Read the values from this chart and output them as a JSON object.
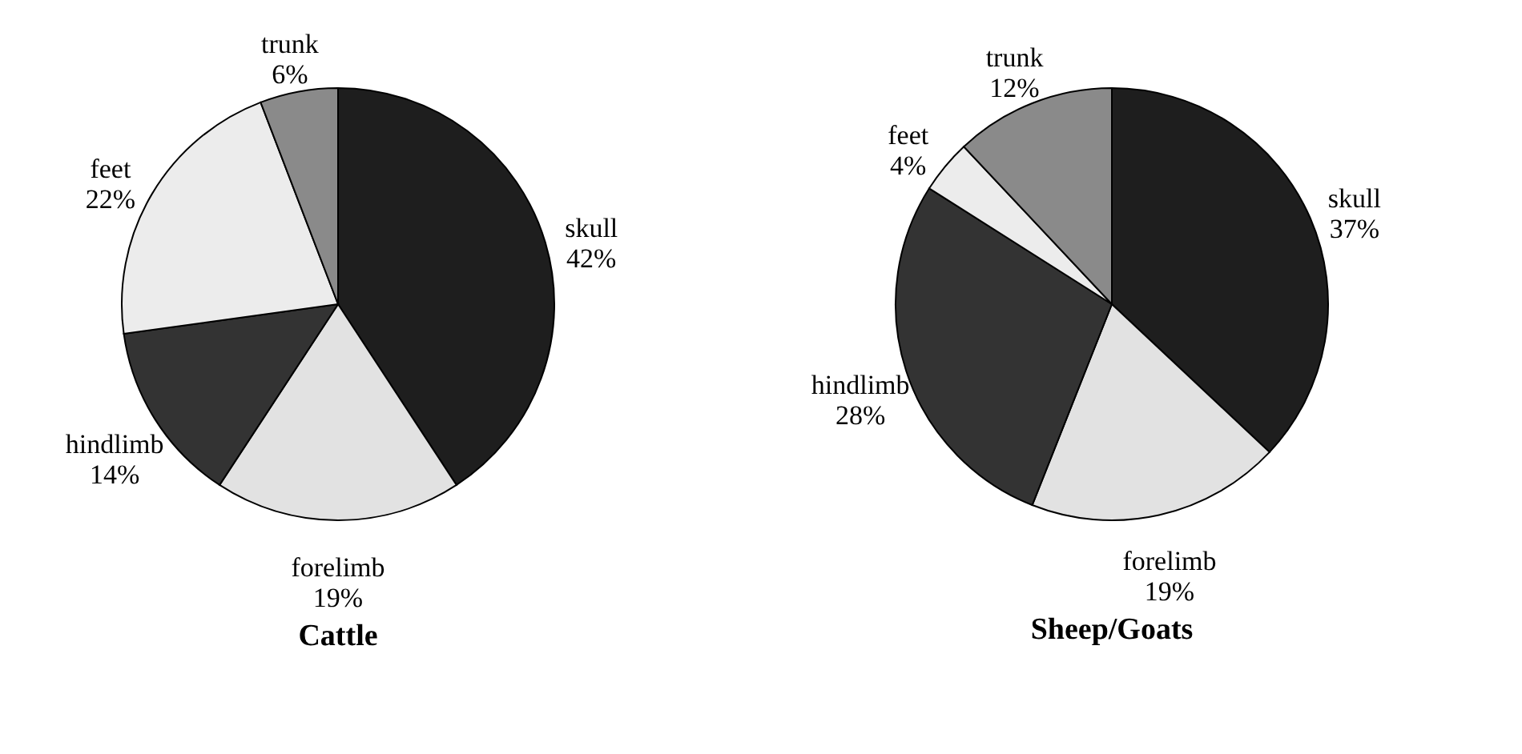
{
  "chart_data": [
    {
      "type": "pie",
      "title": "Cattle",
      "categories": [
        "skull",
        "forelimb",
        "hindlimb",
        "feet",
        "trunk"
      ],
      "values": [
        42,
        19,
        14,
        22,
        6
      ],
      "value_labels": [
        "42%",
        "19%",
        "14%",
        "22%",
        "6%"
      ],
      "colors": [
        "#1e1e1e",
        "#e2e2e2",
        "#333333",
        "#ececec",
        "#8a8a8a"
      ],
      "legend": false
    },
    {
      "type": "pie",
      "title": "Sheep/Goats",
      "categories": [
        "skull",
        "forelimb",
        "hindlimb",
        "feet",
        "trunk"
      ],
      "values": [
        37,
        19,
        28,
        4,
        12
      ],
      "value_labels": [
        "37%",
        "19%",
        "28%",
        "4%",
        "12%"
      ],
      "colors": [
        "#1e1e1e",
        "#e2e2e2",
        "#2e2e2e",
        "#ececec",
        "#8a8a8a"
      ],
      "legend": false
    }
  ]
}
